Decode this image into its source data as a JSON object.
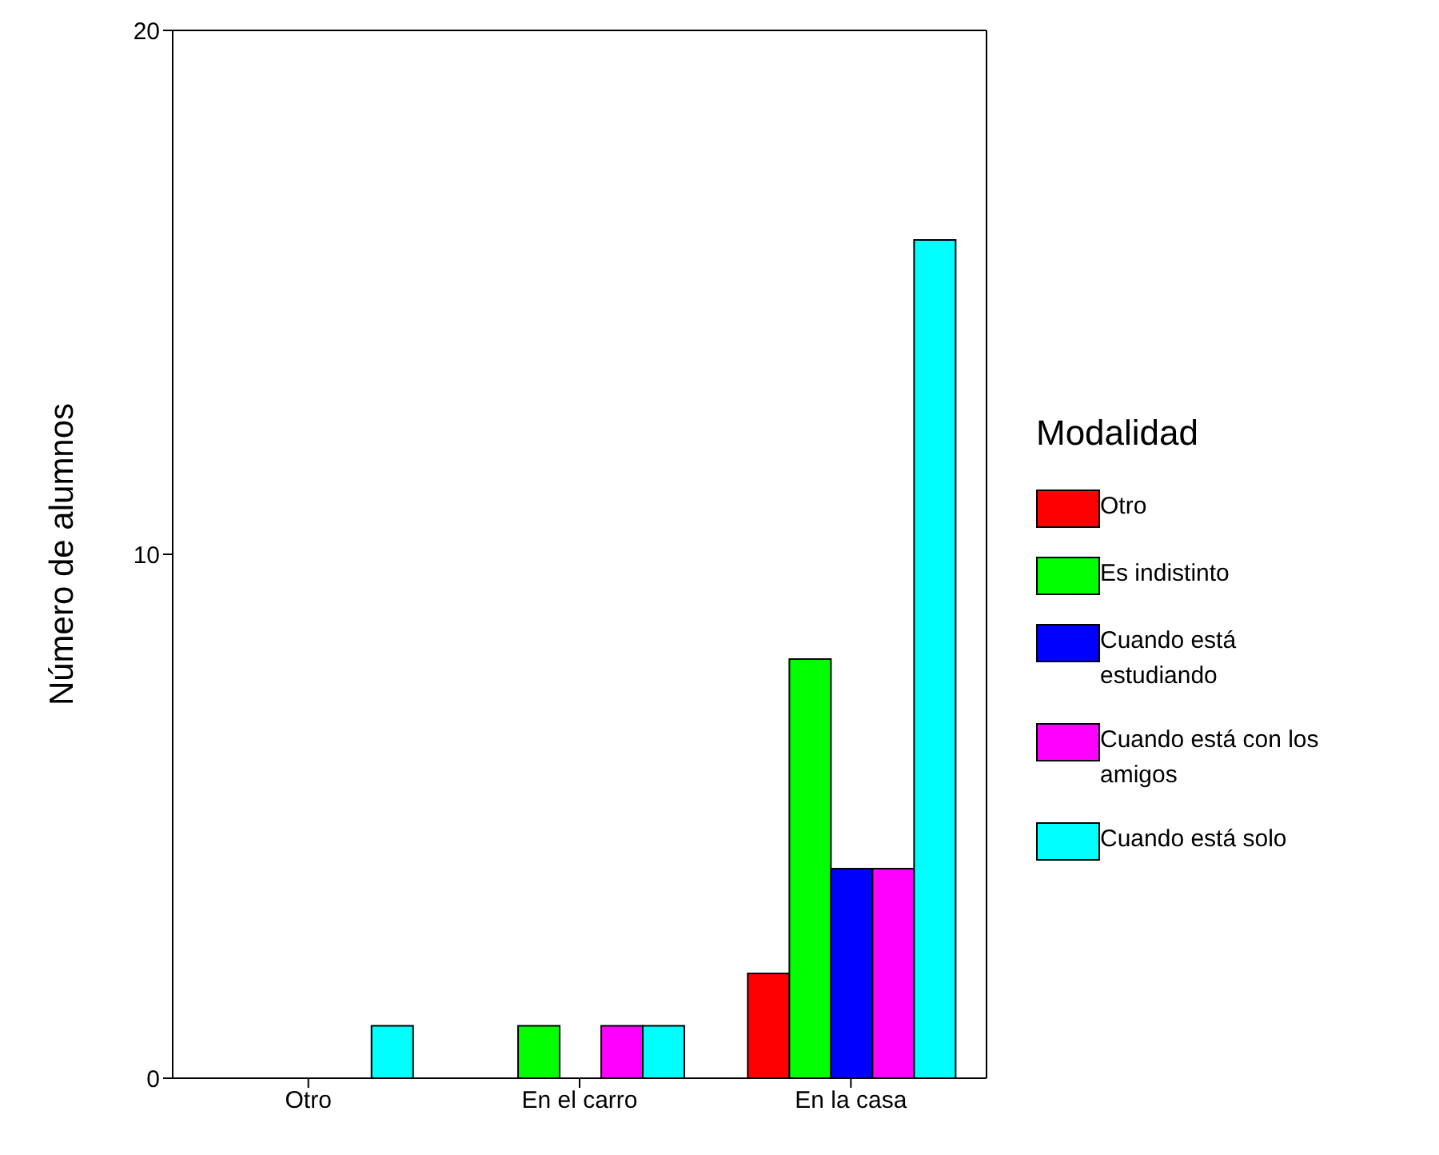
{
  "chart_data": {
    "type": "bar",
    "ylabel": "Número de alumnos",
    "legend_title": "Modalidad",
    "categories": [
      "Otro",
      "En el carro",
      "En la casa"
    ],
    "series": [
      {
        "name": "Otro",
        "color": "#ff0000",
        "values": [
          0,
          0,
          2
        ]
      },
      {
        "name": "Es indistinto",
        "color": "#00ff00",
        "values": [
          0,
          1,
          8
        ]
      },
      {
        "name": "Cuando está estudiando",
        "color": "#0000ff",
        "values": [
          0,
          0,
          4
        ]
      },
      {
        "name": "Cuando está con los amigos",
        "color": "#ff00ff",
        "values": [
          0,
          1,
          4
        ]
      },
      {
        "name": "Cuando está solo",
        "color": "#00ffff",
        "values": [
          1,
          1,
          16
        ]
      }
    ],
    "ylim": [
      0,
      20
    ],
    "yticks": [
      0,
      10,
      20
    ],
    "grid": false,
    "legend": "right"
  }
}
